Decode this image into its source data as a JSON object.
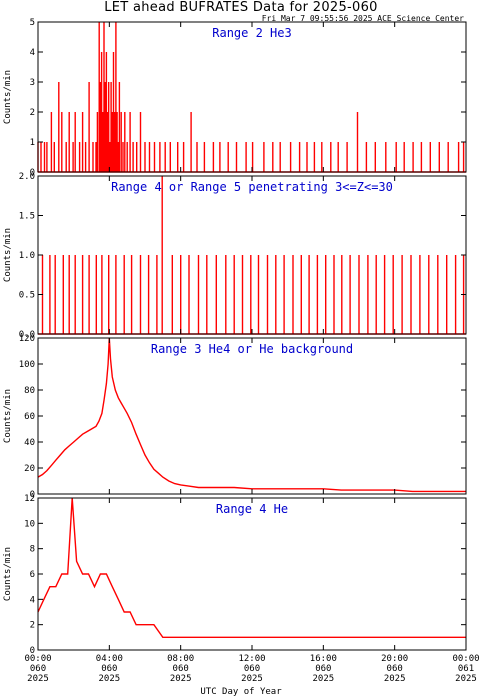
{
  "figure": {
    "title": "LET ahead BUFRATES Data for 2025-060",
    "timestamp": "Fri Mar  7 09:55:56 2025 ACE Science Center",
    "xlabel": "UTC Day of Year",
    "colors": {
      "series": "#ff0000",
      "panel_title": "#0000cc",
      "axes": "#000000"
    }
  },
  "chart_data": [
    {
      "type": "line",
      "title": "Range 2 He3",
      "ylabel": "Counts/min",
      "ylim": [
        0,
        5
      ],
      "yticks": [
        0,
        1,
        2,
        3,
        4,
        5
      ],
      "ytick_labels": [
        "0",
        "1",
        "2",
        "3",
        "4",
        "5"
      ],
      "xlim": [
        0,
        1440
      ],
      "x_unit": "minutes from 2025-060 00:00 UTC",
      "xticks": [
        0,
        240,
        480,
        720,
        960,
        1200,
        1440
      ],
      "series": [
        {
          "baseline": 0,
          "points": [
            [
              0,
              1
            ],
            [
              10,
              1
            ],
            [
              22,
              1
            ],
            [
              30,
              1
            ],
            [
              45,
              2
            ],
            [
              55,
              1
            ],
            [
              70,
              3
            ],
            [
              80,
              2
            ],
            [
              95,
              1
            ],
            [
              105,
              2
            ],
            [
              118,
              1
            ],
            [
              125,
              2
            ],
            [
              140,
              1
            ],
            [
              150,
              2
            ],
            [
              160,
              1
            ],
            [
              172,
              3
            ],
            [
              185,
              1
            ],
            [
              195,
              1
            ],
            [
              200,
              2
            ],
            [
              206,
              5
            ],
            [
              210,
              3
            ],
            [
              214,
              4
            ],
            [
              218,
              2
            ],
            [
              222,
              5
            ],
            [
              226,
              3
            ],
            [
              230,
              4
            ],
            [
              234,
              2
            ],
            [
              238,
              3
            ],
            [
              242,
              1
            ],
            [
              246,
              3
            ],
            [
              250,
              2
            ],
            [
              254,
              4
            ],
            [
              258,
              2
            ],
            [
              262,
              5
            ],
            [
              266,
              2
            ],
            [
              270,
              1
            ],
            [
              274,
              3
            ],
            [
              280,
              2
            ],
            [
              286,
              1
            ],
            [
              292,
              2
            ],
            [
              300,
              1
            ],
            [
              310,
              2
            ],
            [
              320,
              1
            ],
            [
              332,
              1
            ],
            [
              345,
              2
            ],
            [
              360,
              1
            ],
            [
              375,
              1
            ],
            [
              392,
              1
            ],
            [
              410,
              1
            ],
            [
              428,
              1
            ],
            [
              445,
              1
            ],
            [
              470,
              1
            ],
            [
              490,
              1
            ],
            [
              515,
              2
            ],
            [
              535,
              1
            ],
            [
              560,
              1
            ],
            [
              590,
              1
            ],
            [
              612,
              1
            ],
            [
              640,
              1
            ],
            [
              668,
              1
            ],
            [
              700,
              1
            ],
            [
              722,
              1
            ],
            [
              760,
              1
            ],
            [
              790,
              1
            ],
            [
              815,
              1
            ],
            [
              850,
              1
            ],
            [
              880,
              1
            ],
            [
              905,
              1
            ],
            [
              930,
              1
            ],
            [
              955,
              1
            ],
            [
              985,
              1
            ],
            [
              1010,
              1
            ],
            [
              1040,
              1
            ],
            [
              1075,
              2
            ],
            [
              1105,
              1
            ],
            [
              1135,
              1
            ],
            [
              1170,
              1
            ],
            [
              1205,
              1
            ],
            [
              1232,
              1
            ],
            [
              1262,
              1
            ],
            [
              1290,
              1
            ],
            [
              1320,
              1
            ],
            [
              1350,
              1
            ],
            [
              1380,
              1
            ],
            [
              1415,
              1
            ],
            [
              1432,
              1
            ]
          ]
        }
      ]
    },
    {
      "type": "line",
      "title": "Range 4 or Range 5 penetrating 3<=Z<=30",
      "ylabel": "Counts/min",
      "ylim": [
        0,
        2
      ],
      "yticks": [
        0,
        0.5,
        1,
        1.5,
        2
      ],
      "ytick_labels": [
        "0.0",
        "0.5",
        "1.0",
        "1.5",
        "2.0"
      ],
      "xlim": [
        0,
        1440
      ],
      "x_unit": "minutes from 2025-060 00:00 UTC",
      "xticks": [
        0,
        240,
        480,
        720,
        960,
        1200,
        1440
      ],
      "series": [
        {
          "baseline": 0,
          "points": [
            [
              15,
              1
            ],
            [
              40,
              1
            ],
            [
              58,
              1
            ],
            [
              85,
              1
            ],
            [
              105,
              1
            ],
            [
              125,
              1
            ],
            [
              150,
              1
            ],
            [
              172,
              1
            ],
            [
              196,
              1
            ],
            [
              215,
              1
            ],
            [
              238,
              1
            ],
            [
              262,
              1
            ],
            [
              290,
              1
            ],
            [
              315,
              1
            ],
            [
              345,
              1
            ],
            [
              372,
              1
            ],
            [
              400,
              1
            ],
            [
              418,
              2
            ],
            [
              452,
              1
            ],
            [
              480,
              1
            ],
            [
              508,
              1
            ],
            [
              540,
              1
            ],
            [
              568,
              1
            ],
            [
              600,
              1
            ],
            [
              632,
              1
            ],
            [
              660,
              1
            ],
            [
              688,
              1
            ],
            [
              716,
              1
            ],
            [
              742,
              1
            ],
            [
              772,
              1
            ],
            [
              800,
              1
            ],
            [
              828,
              1
            ],
            [
              858,
              1
            ],
            [
              886,
              1
            ],
            [
              912,
              1
            ],
            [
              940,
              1
            ],
            [
              968,
              1
            ],
            [
              996,
              1
            ],
            [
              1022,
              1
            ],
            [
              1050,
              1
            ],
            [
              1080,
              1
            ],
            [
              1110,
              1
            ],
            [
              1138,
              1
            ],
            [
              1166,
              1
            ],
            [
              1195,
              1
            ],
            [
              1225,
              1
            ],
            [
              1255,
              1
            ],
            [
              1285,
              1
            ],
            [
              1315,
              1
            ],
            [
              1345,
              1
            ],
            [
              1375,
              1
            ],
            [
              1405,
              1
            ],
            [
              1432,
              1
            ]
          ]
        }
      ]
    },
    {
      "type": "line",
      "title": "Range 3 He4 or He background",
      "ylabel": "Counts/min",
      "ylim": [
        0,
        120
      ],
      "yticks": [
        0,
        20,
        40,
        60,
        80,
        100,
        120
      ],
      "ytick_labels": [
        "0",
        "20",
        "40",
        "60",
        "80",
        "100",
        "120"
      ],
      "xlim": [
        0,
        1440
      ],
      "x_unit": "minutes from 2025-060 00:00 UTC",
      "xticks": [
        0,
        240,
        480,
        720,
        960,
        1200,
        1440
      ],
      "series": [
        {
          "points": [
            [
              0,
              13
            ],
            [
              15,
              15
            ],
            [
              30,
              18
            ],
            [
              45,
              22
            ],
            [
              60,
              26
            ],
            [
              75,
              30
            ],
            [
              90,
              34
            ],
            [
              105,
              37
            ],
            [
              120,
              40
            ],
            [
              135,
              43
            ],
            [
              150,
              46
            ],
            [
              165,
              48
            ],
            [
              180,
              50
            ],
            [
              195,
              52
            ],
            [
              205,
              56
            ],
            [
              215,
              62
            ],
            [
              222,
              72
            ],
            [
              230,
              85
            ],
            [
              236,
              100
            ],
            [
              240,
              120
            ],
            [
              244,
              104
            ],
            [
              250,
              90
            ],
            [
              260,
              80
            ],
            [
              270,
              74
            ],
            [
              280,
              70
            ],
            [
              290,
              66
            ],
            [
              300,
              62
            ],
            [
              315,
              55
            ],
            [
              330,
              46
            ],
            [
              345,
              38
            ],
            [
              360,
              30
            ],
            [
              375,
              24
            ],
            [
              390,
              19
            ],
            [
              405,
              16
            ],
            [
              420,
              13
            ],
            [
              440,
              10
            ],
            [
              460,
              8
            ],
            [
              480,
              7
            ],
            [
              510,
              6
            ],
            [
              540,
              5
            ],
            [
              600,
              5
            ],
            [
              660,
              5
            ],
            [
              720,
              4
            ],
            [
              780,
              4
            ],
            [
              840,
              4
            ],
            [
              900,
              4
            ],
            [
              960,
              4
            ],
            [
              1020,
              3
            ],
            [
              1080,
              3
            ],
            [
              1140,
              3
            ],
            [
              1200,
              3
            ],
            [
              1260,
              2
            ],
            [
              1320,
              2
            ],
            [
              1380,
              2
            ],
            [
              1440,
              2
            ]
          ]
        }
      ]
    },
    {
      "type": "line",
      "title": "Range 4 He",
      "ylabel": "Counts/min",
      "ylim": [
        0,
        12
      ],
      "yticks": [
        0,
        2,
        4,
        6,
        8,
        10,
        12
      ],
      "ytick_labels": [
        "0",
        "2",
        "4",
        "6",
        "8",
        "10",
        "12"
      ],
      "xlim": [
        0,
        1440
      ],
      "x_unit": "minutes from 2025-060 00:00 UTC",
      "xticks": [
        0,
        240,
        480,
        720,
        960,
        1200,
        1440
      ],
      "series": [
        {
          "points": [
            [
              0,
              3
            ],
            [
              20,
              4
            ],
            [
              40,
              5
            ],
            [
              60,
              5
            ],
            [
              80,
              6
            ],
            [
              100,
              6
            ],
            [
              115,
              12
            ],
            [
              130,
              7
            ],
            [
              150,
              6
            ],
            [
              170,
              6
            ],
            [
              190,
              5
            ],
            [
              210,
              6
            ],
            [
              230,
              6
            ],
            [
              250,
              5
            ],
            [
              270,
              4
            ],
            [
              290,
              3
            ],
            [
              310,
              3
            ],
            [
              330,
              2
            ],
            [
              360,
              2
            ],
            [
              390,
              2
            ],
            [
              420,
              1
            ],
            [
              480,
              1
            ],
            [
              540,
              1
            ],
            [
              600,
              1
            ],
            [
              660,
              1
            ],
            [
              720,
              1
            ],
            [
              780,
              1
            ],
            [
              840,
              1
            ],
            [
              900,
              1
            ],
            [
              960,
              1
            ],
            [
              1020,
              1
            ],
            [
              1080,
              1
            ],
            [
              1140,
              1
            ],
            [
              1200,
              1
            ],
            [
              1260,
              1
            ],
            [
              1320,
              1
            ],
            [
              1380,
              1
            ],
            [
              1440,
              1
            ]
          ]
        }
      ]
    }
  ],
  "xaxis": {
    "tick_labels": [
      [
        "00:00",
        "060",
        "2025"
      ],
      [
        "04:00",
        "060",
        "2025"
      ],
      [
        "08:00",
        "060",
        "2025"
      ],
      [
        "12:00",
        "060",
        "2025"
      ],
      [
        "16:00",
        "060",
        "2025"
      ],
      [
        "20:00",
        "060",
        "2025"
      ],
      [
        "00:00",
        "061",
        "2025"
      ]
    ]
  }
}
